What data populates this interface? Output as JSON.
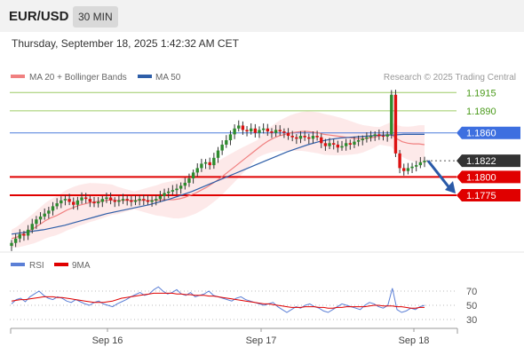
{
  "header": {
    "symbol": "EUR/USD",
    "interval": "30 MIN"
  },
  "timestamp": "Thursday, September 18, 2025 1:42:32 AM CET",
  "credit": "Research © 2025 Trading Central",
  "legend": [
    {
      "label": "MA 20 + Bollinger Bands",
      "color": "#f08080"
    },
    {
      "label": "MA 50",
      "color": "#2e5ea8"
    }
  ],
  "rsi_legend": [
    {
      "label": "RSI",
      "color": "#5b7fd6"
    },
    {
      "label": "9MA",
      "color": "#e00000"
    }
  ],
  "colors": {
    "up": "#2e8b2e",
    "down": "#d11",
    "support": "#dd0000",
    "resistance": "#7cb342",
    "pivot": "#4a7bdc",
    "current": "#333333",
    "arrow": "#2a5aa8"
  },
  "chart_data": {
    "type": "candlestick",
    "x_ticks": [
      "Sep 16",
      "Sep 17",
      "Sep 18"
    ],
    "ylim": [
      1.17,
      1.1925
    ],
    "levels": [
      {
        "label": "1.1915",
        "value": 1.1915,
        "kind": "resistance"
      },
      {
        "label": "1.1890",
        "value": 1.189,
        "kind": "resistance"
      },
      {
        "label": "1.1860",
        "value": 1.186,
        "kind": "pivot"
      },
      {
        "label": "1.1822",
        "value": 1.1822,
        "kind": "current"
      },
      {
        "label": "1.1800",
        "value": 1.18,
        "kind": "support"
      },
      {
        "label": "1.1775",
        "value": 1.1775,
        "kind": "support"
      }
    ],
    "close": [
      1.171,
      1.1716,
      1.1722,
      1.172,
      1.1728,
      1.1736,
      1.1742,
      1.1746,
      1.175,
      1.1754,
      1.176,
      1.1764,
      1.1768,
      1.177,
      1.1766,
      1.1762,
      1.1768,
      1.1772,
      1.177,
      1.1766,
      1.1764,
      1.1766,
      1.177,
      1.1772,
      1.1768,
      1.1766,
      1.1768,
      1.177,
      1.1768,
      1.1766,
      1.1768,
      1.177,
      1.1768,
      1.1766,
      1.1768,
      1.177,
      1.1774,
      1.1778,
      1.178,
      1.1782,
      1.1784,
      1.1788,
      1.1792,
      1.1798,
      1.1806,
      1.1812,
      1.1818,
      1.182,
      1.1816,
      1.1826,
      1.1836,
      1.1844,
      1.185,
      1.1858,
      1.1866,
      1.187,
      1.1864,
      1.1862,
      1.1866,
      1.186,
      1.1864,
      1.1866,
      1.1862,
      1.186,
      1.1864,
      1.1862,
      1.186,
      1.1856,
      1.1854,
      1.1852,
      1.1856,
      1.1854,
      1.1852,
      1.1856,
      1.1854,
      1.1846,
      1.1842,
      1.1846,
      1.1844,
      1.184,
      1.1842,
      1.1846,
      1.1844,
      1.1848,
      1.185,
      1.1852,
      1.1854,
      1.1856,
      1.1858,
      1.1856,
      1.1855,
      1.1858,
      1.1912,
      1.1832,
      1.1812,
      1.1808,
      1.1812,
      1.1814,
      1.1816,
      1.182,
      1.1822
    ],
    "ma20": [
      1.1716,
      1.1718,
      1.1722,
      1.1726,
      1.173,
      1.1735,
      1.174,
      1.1744,
      1.1747,
      1.1751,
      1.1755,
      1.1758,
      1.1761,
      1.1763,
      1.1765,
      1.1766,
      1.1767,
      1.1768,
      1.1769,
      1.1768,
      1.1768,
      1.1768,
      1.1768,
      1.1768,
      1.1768,
      1.1768,
      1.1768,
      1.1769,
      1.1769,
      1.1769,
      1.177,
      1.1772,
      1.1775,
      1.1778,
      1.1782,
      1.1786,
      1.1791,
      1.1796,
      1.1802,
      1.1808,
      1.1814,
      1.182,
      1.1826,
      1.1832,
      1.1838,
      1.1844,
      1.1849,
      1.1853,
      1.1856,
      1.1858,
      1.186,
      1.1861,
      1.1862,
      1.1862,
      1.1861,
      1.186,
      1.1858,
      1.1857,
      1.1856,
      1.1855,
      1.1854,
      1.1853,
      1.1852,
      1.1852,
      1.1853,
      1.1854,
      1.1856,
      1.1857,
      1.1858,
      1.1852,
      1.1848,
      1.1846,
      1.1845,
      1.1845,
      1.1844
    ],
    "ma50": [
      1.1722,
      1.1724,
      1.1726,
      1.1728,
      1.1731,
      1.1734,
      1.1738,
      1.1742,
      1.1746,
      1.175,
      1.1753,
      1.1756,
      1.1759,
      1.1762,
      1.1766,
      1.177,
      1.1775,
      1.178,
      1.1786,
      1.1792,
      1.1798,
      1.1804,
      1.181,
      1.1816,
      1.1822,
      1.1828,
      1.1834,
      1.1839,
      1.1844,
      1.1848,
      1.1851,
      1.1853,
      1.1854,
      1.1855,
      1.1856,
      1.1857,
      1.1857,
      1.1858,
      1.1858,
      1.1858
    ],
    "rsi": {
      "ticks": [
        "70",
        "50",
        "30"
      ],
      "rsi": [
        52,
        58,
        60,
        55,
        62,
        66,
        70,
        64,
        60,
        58,
        62,
        60,
        56,
        54,
        58,
        55,
        52,
        50,
        54,
        56,
        52,
        50,
        48,
        52,
        55,
        58,
        62,
        65,
        68,
        64,
        66,
        72,
        76,
        70,
        66,
        68,
        72,
        66,
        64,
        68,
        62,
        64,
        66,
        70,
        64,
        62,
        60,
        58,
        56,
        60,
        62,
        58,
        56,
        54,
        52,
        50,
        52,
        54,
        48,
        44,
        40,
        44,
        48,
        46,
        50,
        52,
        48,
        46,
        42,
        40,
        44,
        48,
        52,
        50,
        48,
        46,
        44,
        50,
        54,
        52,
        48,
        46,
        50,
        74,
        44,
        40,
        42,
        46,
        44,
        48,
        50
      ],
      "ma": [
        56,
        57,
        58,
        58,
        59,
        60,
        61,
        62,
        62,
        62,
        61,
        61,
        60,
        59,
        58,
        57,
        56,
        55,
        54,
        54,
        54,
        55,
        56,
        58,
        60,
        61,
        62,
        63,
        64,
        65,
        66,
        67,
        67,
        67,
        67,
        67,
        66,
        66,
        65,
        65,
        64,
        64,
        64,
        63,
        63,
        62,
        61,
        60,
        59,
        58,
        57,
        56,
        55,
        54,
        53,
        52,
        52,
        51,
        50,
        49,
        48,
        47,
        47,
        47,
        48,
        48,
        48,
        47,
        47,
        46,
        46,
        47,
        47,
        48,
        48,
        48,
        48,
        48,
        49,
        50,
        50,
        49,
        49,
        49,
        48,
        48,
        47,
        46,
        46,
        47,
        47
      ]
    }
  }
}
